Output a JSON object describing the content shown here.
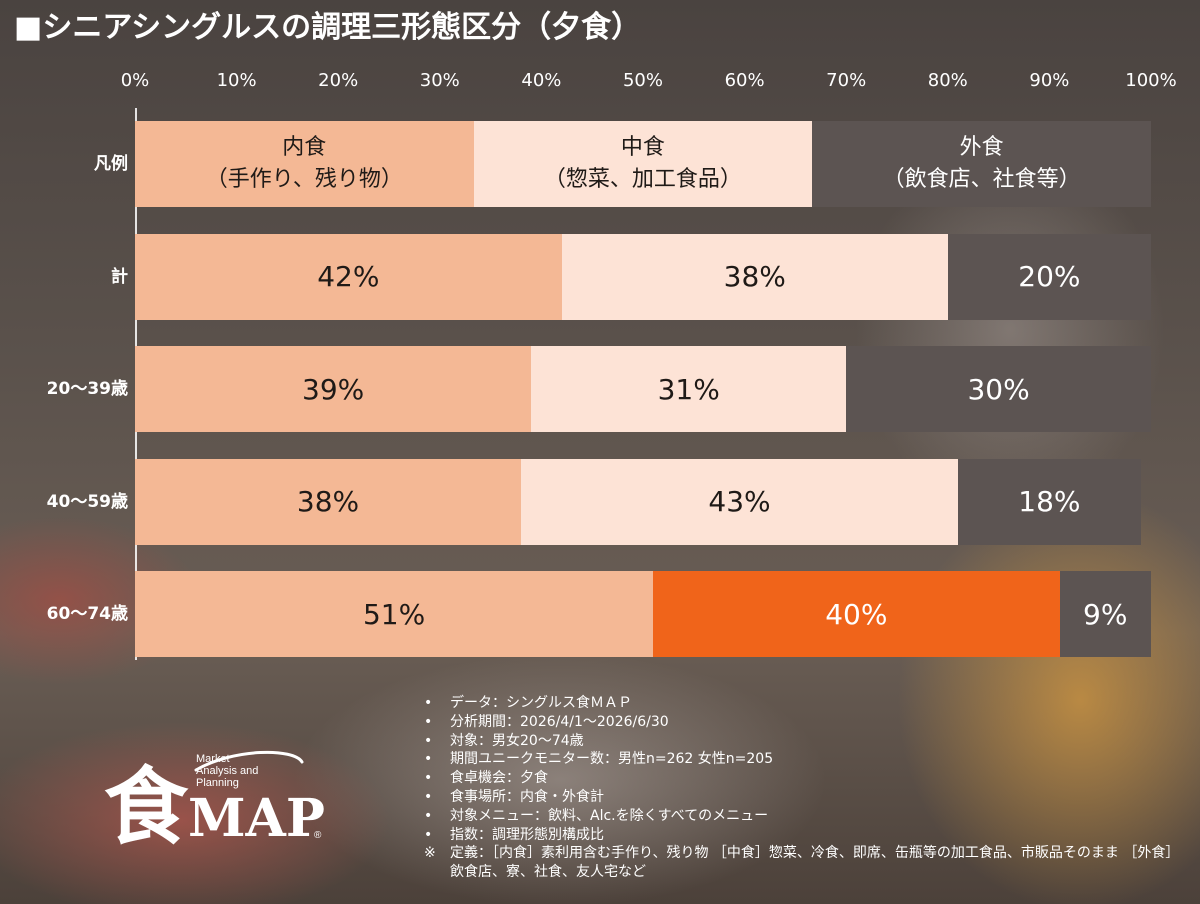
{
  "title": "■シニアシングルスの調理三形態区分（夕食）",
  "axis_ticks": [
    "0%",
    "10%",
    "20%",
    "30%",
    "40%",
    "50%",
    "60%",
    "70%",
    "80%",
    "90%",
    "100%"
  ],
  "colors": {
    "naishoku": "#f4b895",
    "nakashoku": "#fde3d6",
    "nakashoku_highlight": "#f0641a",
    "gaishoku": "#5c5452"
  },
  "chart_data": {
    "type": "bar",
    "orientation": "horizontal",
    "stacked": true,
    "categories": [
      "計",
      "20～39歳",
      "40～59歳",
      "60～74歳"
    ],
    "series": [
      {
        "name": "内食",
        "values": [
          42,
          39,
          38,
          51
        ]
      },
      {
        "name": "中食",
        "values": [
          38,
          31,
          43,
          40
        ]
      },
      {
        "name": "外食",
        "values": [
          20,
          30,
          18,
          9
        ]
      }
    ],
    "value_labels": [
      [
        "42%",
        "38%",
        "20%"
      ],
      [
        "39%",
        "31%",
        "30%"
      ],
      [
        "38%",
        "43%",
        "18%"
      ],
      [
        "51%",
        "40%",
        "9%"
      ]
    ],
    "xlim": [
      0,
      100
    ],
    "highlight": {
      "category": "60～74歳",
      "series": "中食"
    },
    "legend": {
      "label": "凡例",
      "placement": "top-row",
      "items": [
        {
          "line1": "内食",
          "line2": "（手作り、残り物）"
        },
        {
          "line1": "中食",
          "line2": "（惣菜、加工食品）"
        },
        {
          "line1": "外食",
          "line2": "（飲食店、社食等）"
        }
      ]
    }
  },
  "notes": [
    {
      "bullet": "•",
      "text": "データ：シングルス食ＭＡＰ"
    },
    {
      "bullet": "•",
      "text": "分析期間：2026/4/1～2026/6/30"
    },
    {
      "bullet": "•",
      "text": "対象：男女20～74歳"
    },
    {
      "bullet": "•",
      "text": "期間ユニークモニター数：男性n=262 女性n=205"
    },
    {
      "bullet": "•",
      "text": "食卓機会：夕食"
    },
    {
      "bullet": "•",
      "text": "食事場所：内食・外食計"
    },
    {
      "bullet": "•",
      "text": "対象メニュー：飲料、Alc.を除くすべてのメニュー"
    },
    {
      "bullet": "•",
      "text": "指数：調理形態別構成比"
    },
    {
      "bullet": "※",
      "text": "定義：［内食］素利用含む手作り、残り物 ［中食］惣菜、冷食、即席、缶瓶等の加工食品、市販品そのまま ［外食］飲食店、寮、社食、友人宅など"
    }
  ],
  "logo": {
    "kanji": "食",
    "map": "MAP",
    "tagline": [
      "Market",
      "Analysis and",
      "Planning"
    ],
    "mark": "®"
  }
}
